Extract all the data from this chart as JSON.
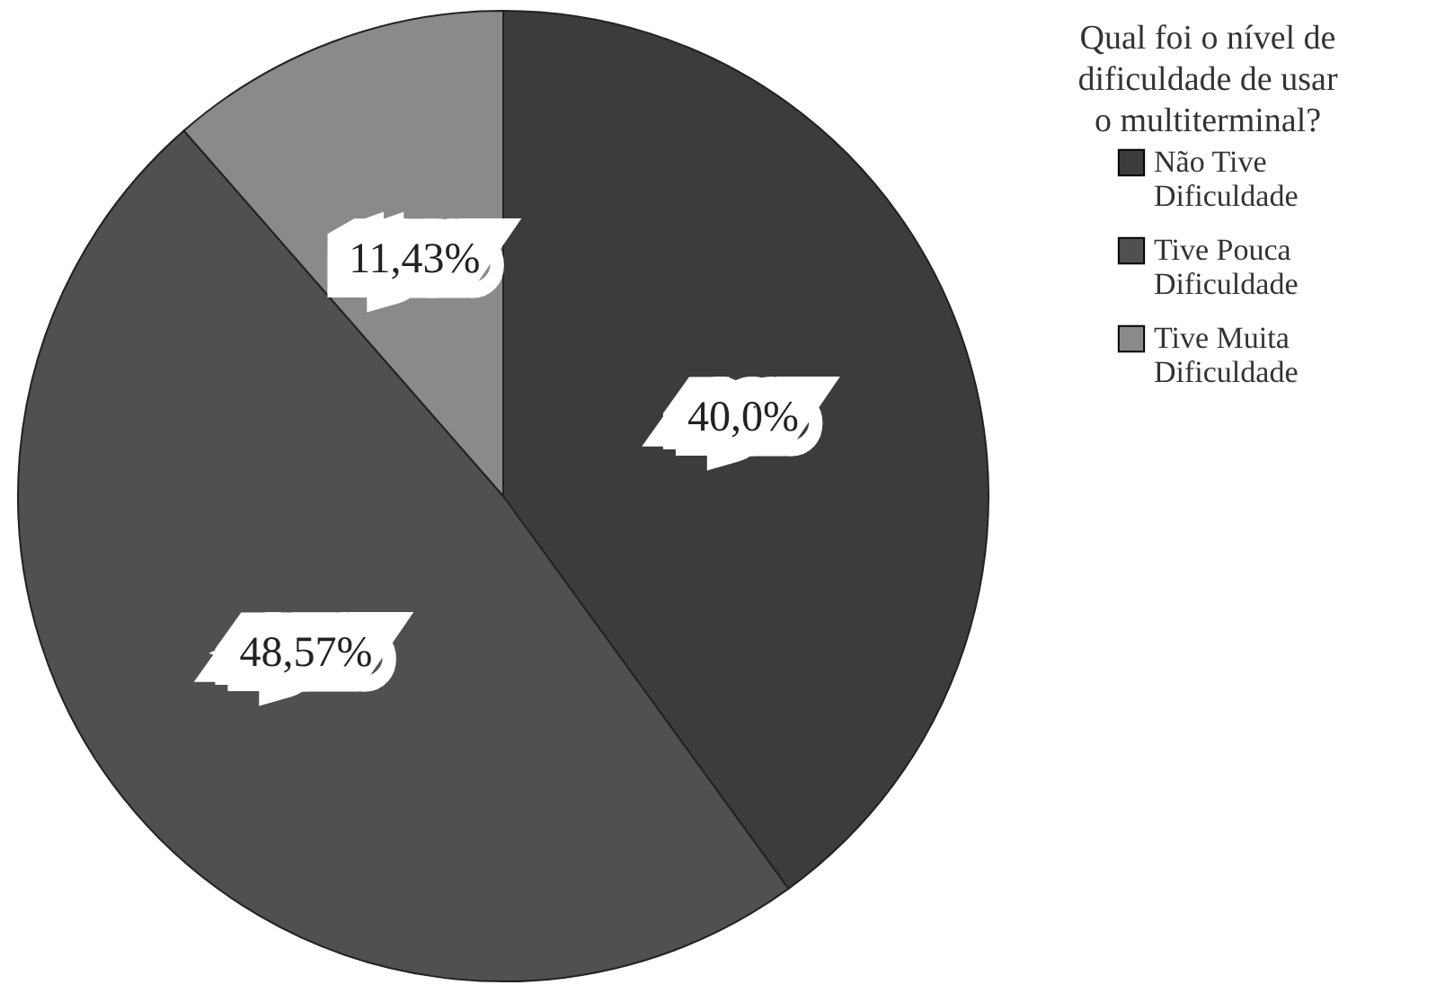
{
  "chart_data": {
    "type": "pie",
    "legend_title": "Qual foi o nível de dificuldade de usar o multiterminal?",
    "categories": [
      "Não Tive Dificuldade",
      "Tive Pouca Dificuldade",
      "Tive Muita Dificuldade"
    ],
    "values": [
      40.0,
      48.57,
      11.43
    ],
    "value_labels": [
      "40,0%",
      "48,57%",
      "11,43%"
    ],
    "colors": [
      "#3c3c3c",
      "#505050",
      "#8a8a8a"
    ],
    "legend": "top right"
  }
}
